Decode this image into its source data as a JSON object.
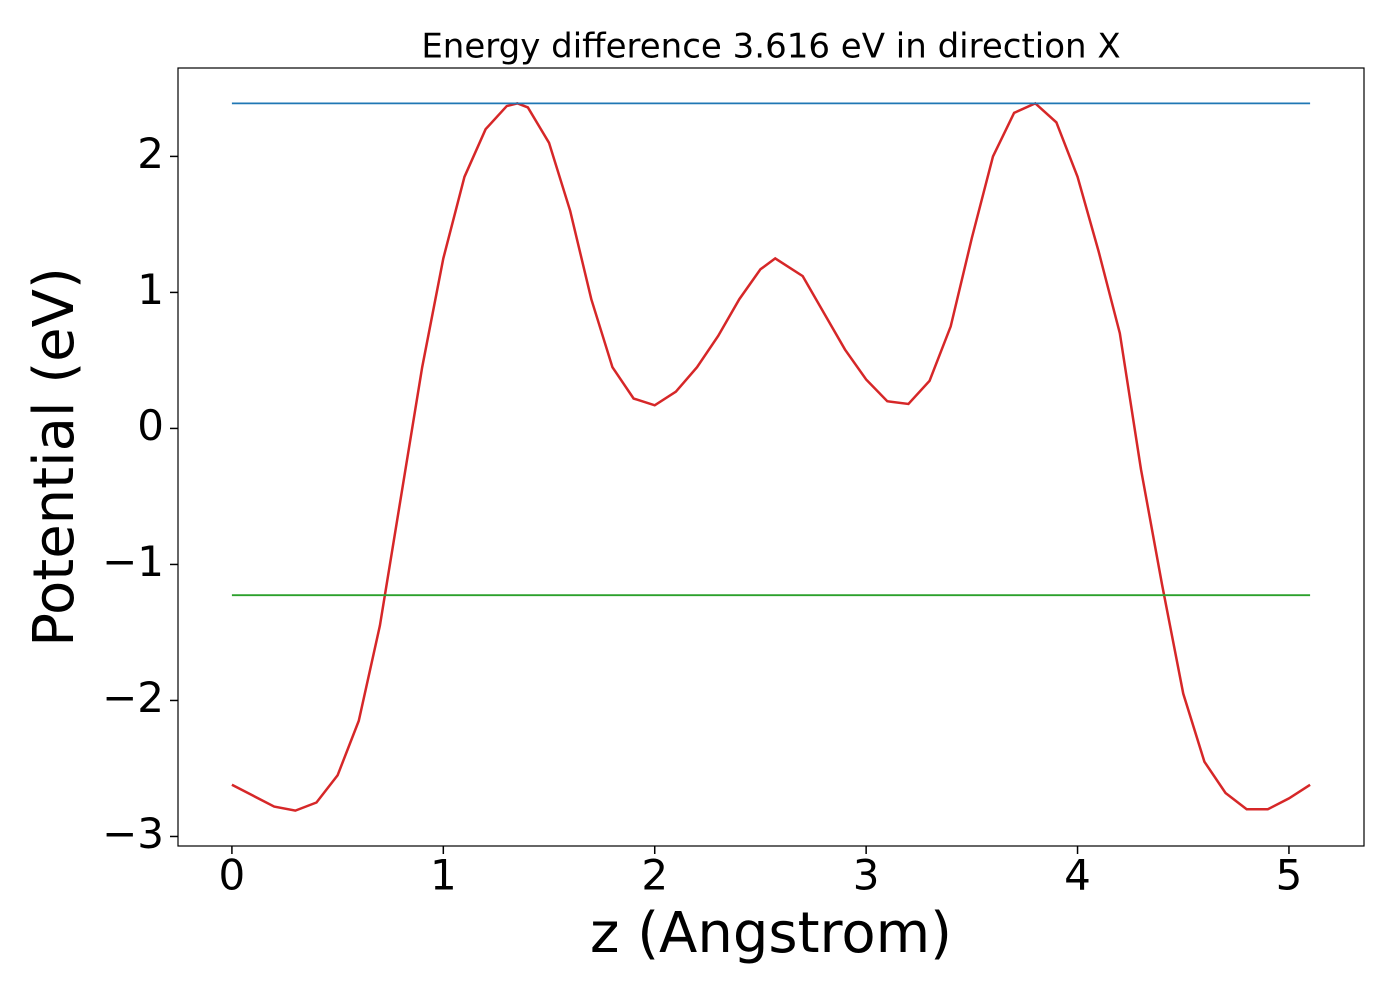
{
  "chart_data": {
    "type": "line",
    "title": "Energy difference 3.616 eV in direction X",
    "xlabel": "z (Angstrom)",
    "ylabel": "Potential (eV)",
    "xlim": [
      -0.255,
      5.355
    ],
    "ylim": [
      -3.07,
      2.65
    ],
    "xticks": [
      0,
      1,
      2,
      3,
      4,
      5
    ],
    "yticks": [
      {
        "value": -3,
        "label": "−3"
      },
      {
        "value": -2,
        "label": "−2"
      },
      {
        "value": -1,
        "label": "−1"
      },
      0,
      1,
      2
    ],
    "grid": false,
    "series": [
      {
        "color": "#d62728",
        "x": [
          0,
          0.1,
          0.2,
          0.3,
          0.4,
          0.5,
          0.6,
          0.7,
          0.8,
          0.9,
          1.0,
          1.1,
          1.2,
          1.3,
          1.35,
          1.4,
          1.5,
          1.6,
          1.7,
          1.8,
          1.9,
          2.0,
          2.1,
          2.2,
          2.3,
          2.4,
          2.5,
          2.57,
          2.7,
          2.8,
          2.9,
          3.0,
          3.1,
          3.2,
          3.3,
          3.4,
          3.5,
          3.6,
          3.7,
          3.8,
          3.9,
          4.0,
          4.1,
          4.2,
          4.3,
          4.4,
          4.5,
          4.6,
          4.7,
          4.8,
          4.9,
          5.0,
          5.1
        ],
        "values": [
          -2.62,
          -2.7,
          -2.78,
          -2.81,
          -2.75,
          -2.55,
          -2.15,
          -1.45,
          -0.5,
          0.45,
          1.25,
          1.85,
          2.2,
          2.37,
          2.39,
          2.36,
          2.1,
          1.6,
          0.95,
          0.45,
          0.22,
          0.17,
          0.27,
          0.45,
          0.68,
          0.95,
          1.17,
          1.25,
          1.12,
          0.85,
          0.58,
          0.36,
          0.2,
          0.18,
          0.35,
          0.75,
          1.4,
          2.0,
          2.32,
          2.39,
          2.25,
          1.85,
          1.3,
          0.7,
          -0.3,
          -1.15,
          -1.95,
          -2.45,
          -2.68,
          -2.8,
          -2.8,
          -2.72,
          -2.62
        ]
      },
      {
        "color": "#1f77b4",
        "x": [
          0,
          5.1
        ],
        "values": [
          2.39,
          2.39
        ]
      },
      {
        "color": "#2ca02c",
        "x": [
          0,
          5.1
        ],
        "values": [
          -1.226,
          -1.226
        ]
      }
    ]
  }
}
